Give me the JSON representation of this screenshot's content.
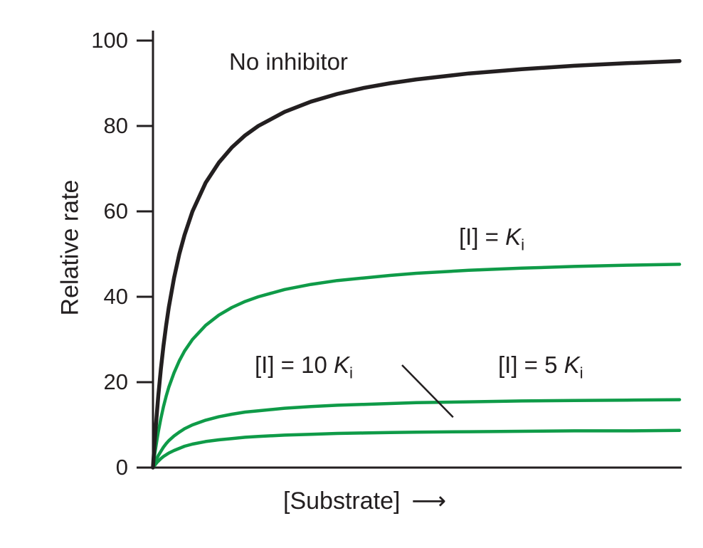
{
  "figure": {
    "background": "#ffffff",
    "text_color": "#231f20",
    "green": "#0f9b48"
  },
  "chart_data": {
    "type": "line",
    "title": "",
    "xlabel": "[Substrate]",
    "xlabel_arrow": "⟶",
    "ylabel": "Relative rate",
    "xlim": [
      0,
      10
    ],
    "ylim": [
      0,
      100
    ],
    "yticks": [
      0,
      20,
      40,
      60,
      80,
      100
    ],
    "xticks": [],
    "grid": false,
    "legend": "labels-on-plot",
    "axis_color": "#231f20",
    "x": [
      0,
      0.025,
      0.05,
      0.075,
      0.1,
      0.15,
      0.2,
      0.25,
      0.3,
      0.4,
      0.5,
      0.6,
      0.75,
      1,
      1.25,
      1.5,
      1.75,
      2,
      2.5,
      3,
      3.5,
      4,
      4.5,
      5,
      6,
      7,
      8,
      9,
      10
    ],
    "series": [
      {
        "id": "no-inhibitor",
        "name": "No inhibitor",
        "color": "#231f20",
        "stroke_width": 5.5,
        "vmax": 100,
        "km": 0.5,
        "values": [
          0,
          4.8,
          9.1,
          13,
          16.7,
          23.1,
          28.6,
          33.3,
          37.5,
          44.4,
          50,
          54.5,
          60,
          66.7,
          71.4,
          75,
          77.8,
          80,
          83.3,
          85.7,
          87.5,
          88.9,
          90,
          90.9,
          92.3,
          93.3,
          94.1,
          94.7,
          95.2
        ]
      },
      {
        "id": "inhibitor-ki",
        "name": "[I] = Ki",
        "color": "#0f9b48",
        "stroke_width": 4.5,
        "vmax": 50,
        "km": 0.5,
        "values": [
          0,
          2.4,
          4.5,
          6.5,
          8.3,
          11.5,
          14.3,
          16.7,
          18.8,
          22.2,
          25,
          27.3,
          30,
          33.3,
          35.7,
          37.5,
          38.9,
          40,
          41.7,
          42.9,
          43.8,
          44.4,
          45,
          45.5,
          46.2,
          46.7,
          47.1,
          47.4,
          47.6
        ]
      },
      {
        "id": "inhibitor-5ki",
        "name": "[I] = 5 Ki",
        "color": "#0f9b48",
        "stroke_width": 4.5,
        "vmax": 16.7,
        "km": 0.5,
        "values": [
          0,
          0.8,
          1.5,
          2.2,
          2.8,
          3.8,
          4.8,
          5.6,
          6.3,
          7.4,
          8.3,
          9.1,
          10,
          11.1,
          11.9,
          12.5,
          13,
          13.3,
          13.9,
          14.3,
          14.6,
          14.8,
          15,
          15.2,
          15.4,
          15.6,
          15.7,
          15.8,
          15.9
        ]
      },
      {
        "id": "inhibitor-10ki",
        "name": "[I] = 10 Ki",
        "color": "#0f9b48",
        "stroke_width": 4.5,
        "vmax": 9.1,
        "km": 0.5,
        "values": [
          0,
          0.4,
          0.8,
          1.2,
          1.5,
          2.1,
          2.6,
          3,
          3.4,
          4,
          4.5,
          5,
          5.5,
          6.1,
          6.5,
          6.8,
          7.1,
          7.3,
          7.6,
          7.8,
          8,
          8.1,
          8.2,
          8.3,
          8.4,
          8.5,
          8.6,
          8.6,
          8.7
        ]
      }
    ],
    "annotations": [
      {
        "type": "callout-line",
        "label": "[I] = 10 Ki",
        "x1": 4.73,
        "y1": 24,
        "x2": 5.7,
        "y2": 11.8,
        "color": "#231f20"
      }
    ]
  },
  "curve_labels": {
    "no_inhibitor": {
      "text": "No inhibitor"
    },
    "ki": {
      "prefix": "[I] = ",
      "symbol": "K",
      "subscript": "i"
    },
    "ki10": {
      "prefix": "[I] = 10 ",
      "symbol": "K",
      "subscript": "i"
    },
    "ki5": {
      "prefix": "[I] = 5 ",
      "symbol": "K",
      "subscript": "i"
    }
  }
}
